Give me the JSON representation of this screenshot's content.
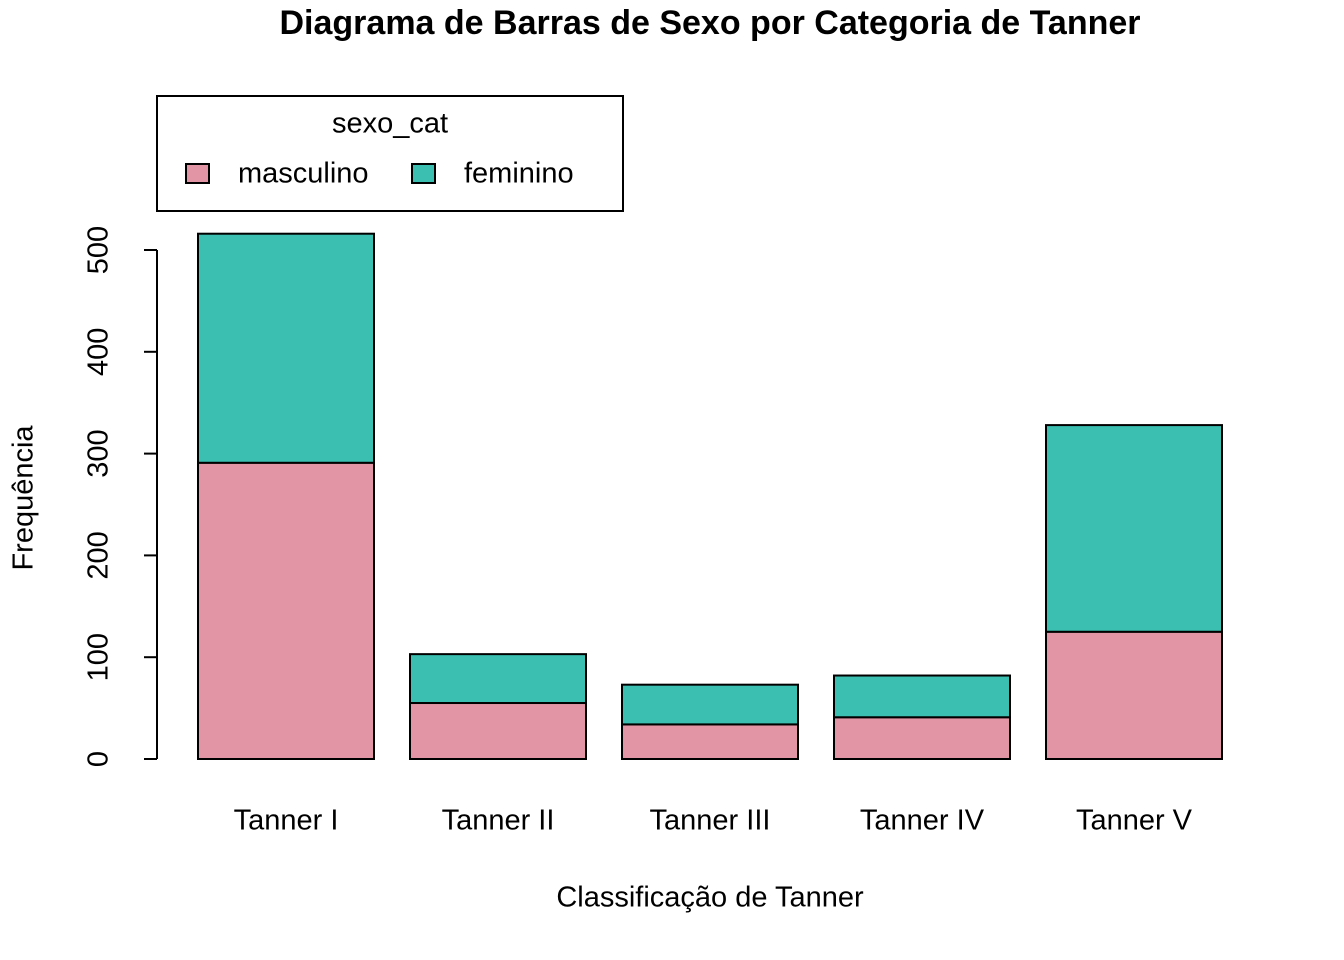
{
  "chart_data": {
    "type": "bar",
    "stacked": true,
    "title": "Diagrama de Barras de Sexo por Categoria de Tanner",
    "x_label": "Classificação de Tanner",
    "y_label": "Frequência",
    "legend_title": "sexo_cat",
    "legend_position": "top-left",
    "categories": [
      "Tanner I",
      "Tanner II",
      "Tanner III",
      "Tanner IV",
      "Tanner V"
    ],
    "series": [
      {
        "name": "masculino",
        "color": "#e295a5",
        "values": [
          291,
          55,
          34,
          41,
          125
        ]
      },
      {
        "name": "feminino",
        "color": "#3bbfb1",
        "values": [
          225,
          48,
          39,
          41,
          203
        ]
      }
    ],
    "ylim": [
      0,
      500
    ],
    "yticks": [
      0,
      100,
      200,
      300,
      400,
      500
    ]
  }
}
